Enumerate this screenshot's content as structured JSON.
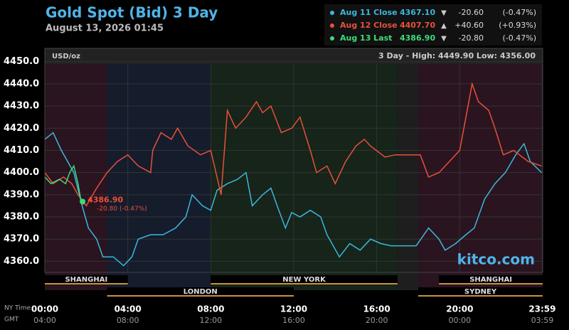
{
  "chart_data": {
    "type": "line",
    "title": "Gold Spot (Bid) 3 Day",
    "subtitle": "August 13, 2026 01:45",
    "unit_label": "USD/oz",
    "range_label": "3 Day - High: 4449.90  Low: 4356.00",
    "watermark": "kitco.com",
    "xlim": [
      0,
      24
    ],
    "ylim": [
      4355,
      4456
    ],
    "yticks": [
      {
        "value": 4360,
        "label": "4360.0"
      },
      {
        "value": 4370,
        "label": "4370.0"
      },
      {
        "value": 4380,
        "label": "4380.0"
      },
      {
        "value": 4390,
        "label": "4390.0"
      },
      {
        "value": 4400,
        "label": "4400.0"
      },
      {
        "value": 4410,
        "label": "4410.0"
      },
      {
        "value": 4420,
        "label": "4420.0"
      },
      {
        "value": 4430,
        "label": "4430.0"
      },
      {
        "value": 4440,
        "label": "4440.0"
      },
      {
        "value": 4450,
        "label": "4450.0"
      }
    ],
    "xticks": [
      {
        "value": 0,
        "label": "00:00"
      },
      {
        "value": 4,
        "label": "04:00"
      },
      {
        "value": 8,
        "label": "08:00"
      },
      {
        "value": 12,
        "label": "12:00"
      },
      {
        "value": 16,
        "label": "16:00"
      },
      {
        "value": 20,
        "label": "20:00"
      },
      {
        "value": 23.98,
        "label": "23:59"
      }
    ],
    "x_row_label": "NY Time",
    "x2_row_label": "GMT",
    "x2_labels": [
      "04:00",
      "08:00",
      "12:00",
      "16:00",
      "20:00",
      "00:00",
      "03:59"
    ],
    "grid": true,
    "bands": [
      {
        "start": 0,
        "end": 3,
        "color": "#2a1420"
      },
      {
        "start": 3,
        "end": 8,
        "color": "#151c2c"
      },
      {
        "start": 8,
        "end": 17,
        "color": "#16241a"
      },
      {
        "start": 17,
        "end": 18,
        "color": "#1e1e1e"
      },
      {
        "start": 18,
        "end": 24,
        "color": "#2a1420"
      }
    ],
    "sessions": [
      {
        "name": "SHANGHAI",
        "start": 0,
        "end": 4,
        "row": 1
      },
      {
        "name": "NEW YORK",
        "start": 8,
        "end": 17,
        "row": 1
      },
      {
        "name": "SHANGHAI",
        "start": 19,
        "end": 24,
        "row": 1
      },
      {
        "name": "LONDON",
        "start": 3,
        "end": 12,
        "row": 2
      },
      {
        "name": "SYDNEY",
        "start": 18,
        "end": 24,
        "row": 2
      }
    ],
    "series": [
      {
        "name": "Aug 11 Close",
        "color": "#3cb8dc",
        "close": "4367.10",
        "arrow": "▼",
        "change": "-20.60",
        "pct": "(-0.47%)",
        "x": [
          0,
          0.4,
          0.8,
          1.1,
          1.4,
          1.8,
          2.1,
          2.5,
          2.8,
          3.3,
          3.8,
          4.2,
          4.5,
          5.1,
          5.7,
          6.3,
          6.8,
          7.1,
          7.6,
          8.0,
          8.3,
          8.8,
          9.3,
          9.7,
          10.0,
          10.5,
          10.9,
          11.2,
          11.6,
          11.9,
          12.3,
          12.8,
          13.3,
          13.6,
          14.2,
          14.7,
          15.2,
          15.7,
          16.2,
          16.7,
          17.9,
          18.5,
          19.0,
          19.3,
          19.8,
          20.3,
          20.7,
          21.2,
          21.7,
          22.2,
          22.7,
          23.1,
          23.4,
          23.95
        ],
        "values": [
          4415,
          4418,
          4410,
          4405,
          4400,
          4385,
          4375,
          4370,
          4362,
          4362,
          4358,
          4362,
          4370,
          4372,
          4372,
          4375,
          4380,
          4390,
          4385,
          4383,
          4392,
          4395,
          4397,
          4400,
          4385,
          4390,
          4393,
          4385,
          4375,
          4382,
          4380,
          4383,
          4380,
          4372,
          4362,
          4368,
          4365,
          4370,
          4368,
          4367,
          4367,
          4375,
          4370,
          4365,
          4368,
          4372,
          4375,
          4388,
          4395,
          4400,
          4408,
          4413,
          4405,
          4400
        ]
      },
      {
        "name": "Aug 12 Close",
        "color": "#e8503a",
        "close": "4407.70",
        "arrow": "▲",
        "change": "+40.60",
        "pct": "(+0.93%)",
        "x": [
          0,
          0.4,
          0.9,
          1.3,
          1.6,
          2.0,
          2.5,
          3.0,
          3.5,
          4.0,
          4.5,
          5.1,
          5.2,
          5.6,
          6.1,
          6.4,
          6.9,
          7.5,
          8.0,
          8.5,
          8.8,
          9.2,
          9.7,
          10.2,
          10.5,
          10.9,
          11.4,
          11.9,
          12.3,
          12.8,
          13.1,
          13.6,
          14.0,
          14.5,
          15.0,
          15.4,
          15.7,
          16.4,
          16.9,
          18.1,
          18.5,
          19.0,
          19.5,
          20.0,
          20.3,
          20.6,
          20.9,
          21.4,
          21.7,
          22.1,
          22.6,
          23.3,
          23.95
        ],
        "values": [
          4400,
          4395,
          4398,
          4395,
          4390,
          4385,
          4393,
          4400,
          4405,
          4408,
          4403,
          4400,
          4410,
          4418,
          4415,
          4420,
          4412,
          4408,
          4410,
          4390,
          4428,
          4420,
          4425,
          4432,
          4427,
          4430,
          4418,
          4420,
          4425,
          4410,
          4400,
          4403,
          4395,
          4405,
          4412,
          4415,
          4412,
          4407,
          4408,
          4408,
          4398,
          4400,
          4405,
          4410,
          4425,
          4440,
          4432,
          4428,
          4420,
          4408,
          4410,
          4405,
          4403
        ]
      },
      {
        "name": "Aug 13 Last",
        "color": "#3ddc7a",
        "close": "4386.90",
        "arrow": "▼",
        "change": "-20.80",
        "pct": "(-0.47%)",
        "x": [
          0,
          0.3,
          0.7,
          1.0,
          1.2,
          1.4,
          1.6,
          1.75,
          1.82
        ],
        "values": [
          4398,
          4395,
          4397,
          4395,
          4400,
          4403,
          4395,
          4387,
          4386.9
        ]
      }
    ],
    "last_label": "4386.90",
    "last_change": "-20.80 (-0.47%)"
  }
}
